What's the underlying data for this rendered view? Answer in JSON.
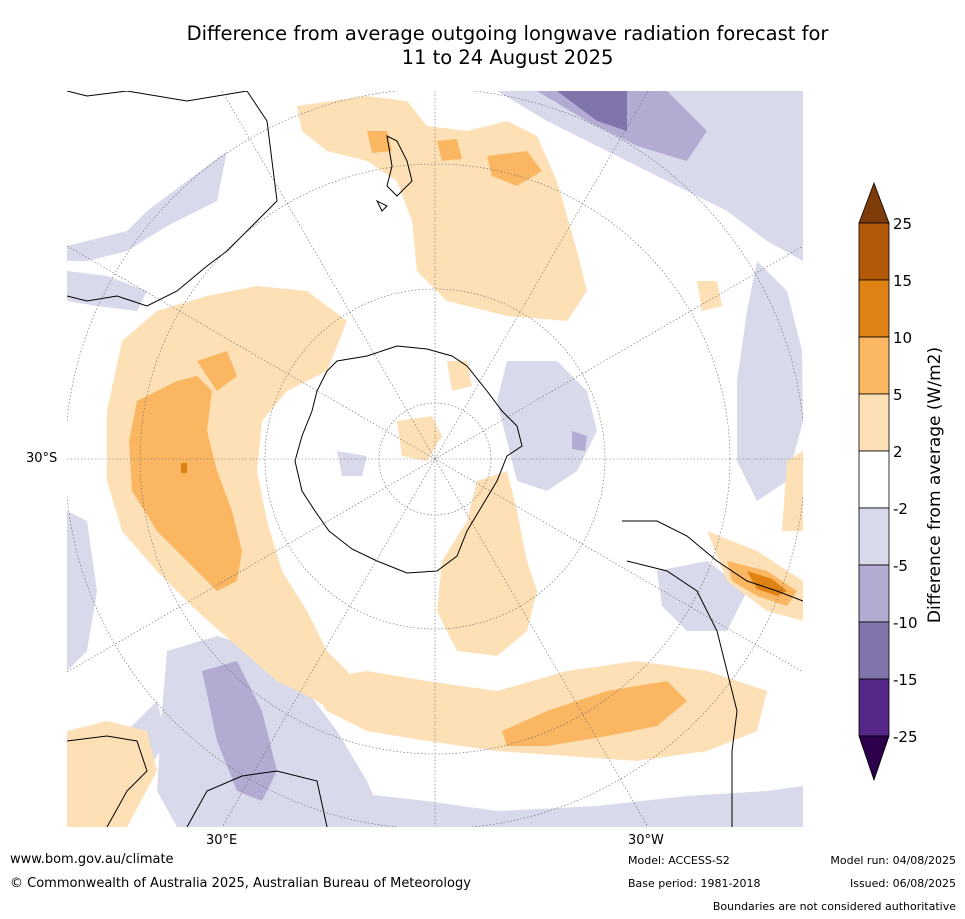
{
  "title": {
    "line1": "Difference from average outgoing longwave radiation forecast for",
    "line2": "11 to 24 August 2025"
  },
  "map": {
    "projection": "south polar stereographic",
    "grid_labels": {
      "lat_30s": "30°S",
      "lon_30e": "30°E",
      "lon_30w": "30°W"
    },
    "colors": {
      "ocean_neutral": "#ffffff",
      "pos_2_5": "#fde0b5",
      "pos_5_10": "#fbb662",
      "pos_10_15": "#e08114",
      "pos_15_25": "#b35806",
      "neg_2_5": "#d8d9ea",
      "neg_5_10": "#b3acd2",
      "neg_10_15": "#8074aa",
      "neg_15_25": "#542788",
      "coastline": "#000000",
      "boundary": "#888888"
    }
  },
  "colorbar": {
    "title": "Difference from average (W/m2)",
    "ticks": [
      "25",
      "15",
      "10",
      "5",
      "2",
      "-2",
      "-5",
      "-10",
      "-15",
      "-25"
    ],
    "colors": [
      "#7f3b08",
      "#b35806",
      "#e08114",
      "#fbb662",
      "#fde0b5",
      "#ffffff",
      "#d8d9ea",
      "#b3acd2",
      "#8074aa",
      "#542788",
      "#2d004b"
    ]
  },
  "footer": {
    "url": "www.bom.gov.au/climate",
    "copyright": "© Commonwealth of Australia 2025, Australian Bureau of Meteorology",
    "model": "Model: ACCESS-S2",
    "base_period": "Base period: 1981-2018",
    "model_run": "Model run: 04/08/2025",
    "issued": "Issued: 06/08/2025",
    "disclaimer": "Boundaries are not considered authoritative"
  }
}
